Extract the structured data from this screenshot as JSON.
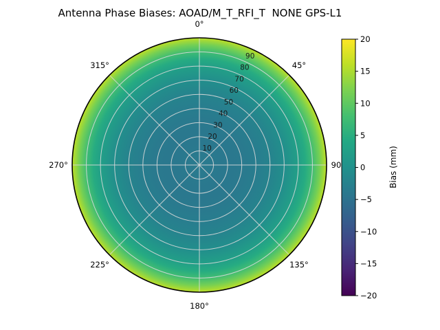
{
  "chart_data": {
    "type": "heatmap",
    "projection": "polar",
    "title": "Antenna Phase Biases: AOAD/M_T_RFI_T  NONE GPS-L1",
    "theta_zero_location": "N",
    "theta_direction": "clockwise",
    "theta_tick_labels": [
      "0°",
      "45°",
      "90",
      "135°",
      "180°",
      "225°",
      "270°",
      "315°"
    ],
    "radial_tick_labels": [
      "10",
      "20",
      "30",
      "40",
      "50",
      "60",
      "70",
      "80",
      "90"
    ],
    "radial_range": [
      0,
      90
    ],
    "radial_label_angle_deg": 22.5,
    "grid": true,
    "symmetry": "azimuth-independent",
    "colormap": "viridis",
    "colorbar": {
      "label": "Bias (mm)",
      "ticks": [
        20,
        15,
        10,
        5,
        0,
        -5,
        -10,
        -15,
        -20
      ],
      "vmin": -20,
      "vmax": 20,
      "position": "right"
    },
    "radial_profile": {
      "zenith_deg": [
        0,
        10,
        20,
        30,
        40,
        50,
        60,
        70,
        75,
        80,
        85,
        90
      ],
      "bias_mm": [
        -3.5,
        -3.8,
        -4.0,
        -3.8,
        -3.2,
        -2.2,
        -0.5,
        2.5,
        4.5,
        7.5,
        11.5,
        16.0
      ]
    }
  },
  "colors": {
    "background": "#ffffff",
    "outline": "#000000",
    "grid": "#d9d9d9",
    "text": "#000000",
    "radial_tick_text": "#1a1a1a",
    "viridis": [
      "#440154",
      "#482475",
      "#414487",
      "#355f8d",
      "#2a788e",
      "#21918c",
      "#22a884",
      "#44bf70",
      "#7ad151",
      "#bddf26",
      "#fde725"
    ]
  }
}
